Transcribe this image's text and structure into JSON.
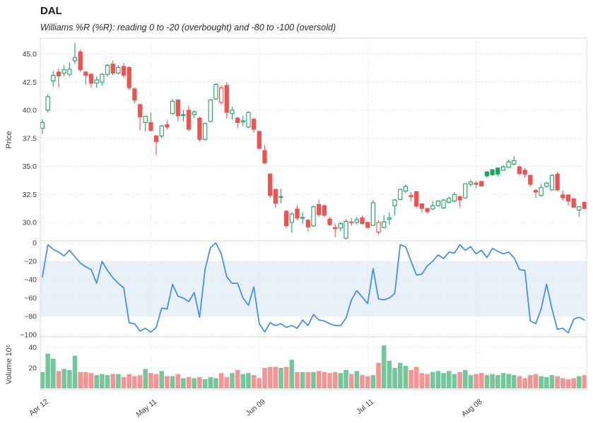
{
  "header": {
    "title": "DAL",
    "subtitle": "Williams %R (%R): reading 0 to -20 (overbought) and -80 to -100 (oversold)"
  },
  "colors": {
    "up": "#1fa35e",
    "down": "#ef5351",
    "wr_line": "#3d8bf2",
    "band_fill": "#e8f1f8",
    "grid": "#e4e4e4",
    "frame": "#d8d8d8",
    "tick_text": "#3d3d3d",
    "volume_opacity": 0.62
  },
  "axes": {
    "price_axis_title": "Price",
    "volume_axis_title": "Volume  10⁶",
    "price_tick_labels": [
      "45.0",
      "42.5",
      "40.0",
      "37.5",
      "35.0",
      "32.5",
      "30.0"
    ],
    "price_tick_values": [
      45,
      42.5,
      40,
      37.5,
      35,
      32.5,
      30
    ],
    "wr_tick_labels": [
      "0",
      "−20",
      "−40",
      "−60",
      "−80",
      "−100"
    ],
    "wr_tick_values": [
      0,
      -20,
      -40,
      -60,
      -80,
      -100
    ],
    "volume_tick_labels": [
      "20",
      "40"
    ],
    "volume_tick_values": [
      20,
      40
    ],
    "x_tick_labels": [
      "Apr 12",
      "May 11",
      "Jun 09",
      "Jul 11",
      "Aug 08"
    ],
    "x_tick_indices": [
      0,
      20,
      40,
      60,
      80
    ]
  },
  "chart_data": [
    {
      "type": "candlestick",
      "panel": "price",
      "title": "DAL",
      "ylabel": "Price",
      "ylim": [
        28.4,
        46.4
      ],
      "open": [
        38.4,
        40.0,
        42.6,
        43.4,
        43.3,
        43.2,
        44.4,
        45.2,
        43.4,
        43.2,
        42.4,
        42.5,
        43.2,
        44.1,
        43.3,
        43.9,
        43.8,
        41.9,
        40.5,
        38.9,
        38.9,
        37.7,
        37.7,
        38.7,
        39.7,
        40.9,
        39.6,
        40.0,
        39.6,
        39.3,
        37.4,
        39.0,
        41.0,
        40.7,
        42.2,
        39.7,
        39.3,
        39.0,
        38.5,
        39.2,
        38.1,
        36.4,
        34.3,
        32.95,
        32.25,
        31.0,
        30.0,
        31.2,
        30.4,
        30.2,
        29.7,
        31.6,
        31.5,
        30.3,
        29.55,
        29.5,
        28.6,
        30.0,
        30.0,
        30.4,
        30.0,
        29.75,
        29.15,
        29.55,
        30.3,
        31.5,
        32.05,
        32.8,
        32.4,
        32.75,
        31.65,
        31.25,
        31.2,
        31.5,
        31.3,
        31.8,
        31.9,
        32.3,
        32.2,
        33.4,
        33.5,
        33.65,
        34.5,
        34.7,
        34.85,
        34.65,
        34.9,
        35.2,
        34.95,
        34.65,
        34.2,
        32.85,
        32.4,
        33.2,
        32.9,
        34.3,
        32.45,
        32.45,
        32.1,
        31.1,
        31.8
      ],
      "high": [
        39.2,
        41.4,
        43.5,
        43.7,
        44.0,
        44.2,
        46.0,
        45.4,
        43.5,
        43.3,
        43.0,
        43.3,
        44.1,
        44.4,
        44.0,
        44.2,
        43.9,
        42.0,
        40.6,
        39.5,
        39.8,
        37.8,
        38.7,
        39.1,
        41.0,
        41.0,
        40.0,
        40.4,
        40.0,
        39.4,
        38.9,
        41.0,
        42.4,
        42.2,
        42.5,
        40.3,
        39.4,
        39.5,
        39.9,
        39.3,
        38.2,
        36.9,
        34.4,
        33.0,
        33.0,
        31.1,
        30.9,
        31.5,
        30.9,
        30.3,
        31.5,
        32.0,
        31.6,
        30.5,
        29.9,
        30.0,
        30.3,
        30.4,
        30.5,
        30.6,
        30.1,
        32.0,
        30.2,
        30.65,
        30.9,
        32.1,
        33.0,
        33.4,
        32.7,
        32.8,
        31.7,
        31.3,
        31.9,
        32.0,
        32.1,
        32.3,
        32.7,
        32.4,
        33.5,
        33.8,
        33.7,
        33.7,
        34.6,
        34.75,
        34.9,
        35.1,
        35.6,
        35.9,
        35.1,
        34.85,
        34.25,
        33.0,
        33.4,
        33.6,
        34.3,
        34.5,
        32.85,
        32.5,
        32.2,
        31.45,
        31.85
      ],
      "low": [
        37.9,
        39.8,
        42.1,
        42.0,
        43.0,
        43.0,
        44.1,
        43.4,
        42.3,
        42.0,
        42.0,
        42.2,
        43.0,
        43.1,
        43.2,
        42.9,
        41.8,
        40.6,
        38.2,
        38.1,
        38.1,
        36.0,
        37.5,
        38.3,
        39.6,
        39.0,
        39.0,
        38.1,
        39.3,
        37.2,
        37.3,
        38.9,
        40.9,
        40.5,
        39.3,
        39.2,
        38.4,
        38.6,
        38.4,
        38.0,
        36.5,
        35.2,
        32.2,
        31.3,
        31.7,
        29.5,
        29.1,
        30.2,
        29.9,
        29.2,
        29.6,
        30.5,
        30.5,
        29.7,
        28.7,
        29.2,
        28.5,
        29.7,
        29.8,
        29.8,
        29.5,
        29.7,
        28.9,
        29.5,
        29.8,
        30.65,
        32.0,
        32.6,
        31.85,
        31.3,
        30.9,
        30.85,
        31.1,
        31.4,
        31.2,
        31.7,
        31.8,
        31.35,
        32.1,
        33.2,
        33.05,
        33.2,
        34.0,
        34.15,
        34.1,
        34.6,
        34.85,
        35.1,
        34.25,
        34.0,
        33.2,
        32.2,
        32.3,
        33.1,
        32.85,
        32.8,
        31.95,
        31.5,
        31.3,
        30.5,
        31.15
      ],
      "close": [
        38.9,
        41.2,
        43.1,
        43.05,
        43.6,
        43.65,
        44.7,
        43.6,
        43.1,
        42.4,
        42.7,
        43.2,
        44.0,
        43.3,
        43.8,
        43.1,
        42.0,
        40.9,
        39.4,
        39.45,
        38.2,
        37.2,
        38.6,
        38.5,
        40.8,
        39.5,
        39.55,
        38.3,
        39.85,
        37.4,
        38.8,
        40.9,
        42.3,
        42.0,
        39.8,
        40.0,
        38.9,
        39.05,
        39.8,
        38.3,
        36.6,
        35.3,
        32.4,
        31.7,
        32.3,
        29.7,
        30.75,
        30.4,
        30.45,
        29.6,
        31.4,
        30.7,
        30.65,
        29.8,
        29.45,
        29.9,
        30.1,
        30.05,
        30.25,
        29.9,
        29.55,
        31.75,
        30.0,
        30.05,
        30.4,
        32.0,
        32.95,
        33.2,
        32.3,
        31.45,
        31.25,
        30.95,
        31.5,
        31.9,
        32.0,
        32.15,
        32.5,
        32.0,
        33.45,
        33.6,
        33.4,
        33.25,
        34.15,
        34.25,
        34.3,
        34.95,
        35.4,
        35.5,
        34.35,
        34.3,
        33.4,
        32.7,
        33.1,
        33.5,
        34.2,
        32.9,
        32.2,
        31.9,
        31.35,
        31.4,
        31.25
      ]
    },
    {
      "type": "line",
      "panel": "williams_r",
      "name": "Williams %R",
      "ylim": [
        0,
        -100
      ],
      "overbought_level": -20,
      "oversold_level": -80,
      "values": [
        -37,
        -2,
        -7,
        -10,
        -14,
        -8,
        -15,
        -22,
        -26,
        -29,
        -44,
        -20,
        -30,
        -38,
        -44,
        -49,
        -87,
        -88,
        -96,
        -93,
        -97,
        -92,
        -71,
        -72,
        -45,
        -58,
        -60,
        -64,
        -54,
        -81,
        -29,
        -5,
        0,
        -12,
        -37,
        -44,
        -44,
        -60,
        -68,
        -48,
        -88,
        -97,
        -87,
        -90,
        -88,
        -92,
        -90,
        -93,
        -84,
        -90,
        -78,
        -84,
        -85,
        -88,
        -90,
        -90,
        -82,
        -62,
        -52,
        -59,
        -66,
        -28,
        -61,
        -62,
        -60,
        -55,
        -2,
        -4,
        -20,
        -35,
        -34,
        -25,
        -20,
        -13,
        -17,
        -10,
        -11,
        -2,
        -8,
        -4,
        -12,
        -8,
        -16,
        -6,
        -9,
        -12,
        -10,
        -16,
        -29,
        -30,
        -85,
        -88,
        -72,
        -45,
        -72,
        -94,
        -93,
        -98,
        -83,
        -81,
        -84
      ]
    },
    {
      "type": "bar",
      "panel": "volume",
      "name": "Volume (millions)",
      "ylabel": "Volume 10^6",
      "values": [
        16,
        34,
        29,
        17,
        19,
        18,
        32,
        16,
        16,
        15,
        13,
        14,
        13,
        14,
        14,
        11,
        14,
        12,
        13,
        19,
        15,
        14,
        17,
        12,
        12,
        14,
        10,
        11,
        10,
        11,
        9,
        11,
        10,
        15,
        11,
        15,
        18,
        14,
        15,
        13,
        10,
        20,
        21,
        21,
        20,
        21,
        28,
        16,
        16,
        16,
        16,
        17,
        16,
        15,
        16,
        15,
        18,
        14,
        17,
        13,
        12,
        13,
        25,
        42,
        27,
        20,
        25,
        22,
        18,
        21,
        15,
        14,
        16,
        17,
        15,
        17,
        14,
        16,
        18,
        13,
        14,
        15,
        13,
        14,
        13,
        15,
        14,
        13,
        12,
        10,
        13,
        14,
        12,
        11,
        13,
        12,
        10,
        9,
        10,
        12,
        13
      ]
    }
  ]
}
